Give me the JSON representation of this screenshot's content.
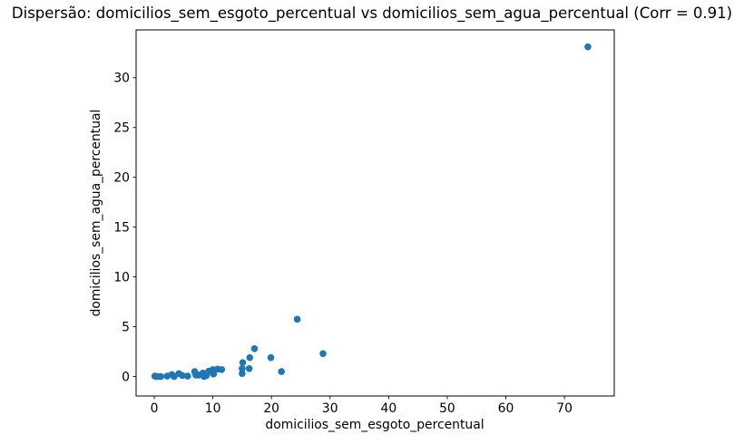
{
  "chart_data": {
    "type": "scatter",
    "title": "Dispersão: domicilios_sem_esgoto_percentual vs domicilios_sem_agua_percentual (Corr = 0.91)",
    "xlabel": "domicilios_sem_esgoto_percentual",
    "ylabel": "domicilios_sem_agua_percentual",
    "correlation": 0.91,
    "marker_color": "#1f77b4",
    "frame_color": "#000000",
    "background_color": "#ffffff",
    "grid": false,
    "legend_position": "none",
    "xlim": [
      -3.1,
      78.5
    ],
    "ylim": [
      -1.95,
      34.8
    ],
    "x_ticks": [
      0,
      10,
      20,
      30,
      40,
      50,
      60,
      70
    ],
    "y_ticks": [
      0,
      5,
      10,
      15,
      20,
      25,
      30
    ],
    "points": [
      [
        0.1,
        0.05
      ],
      [
        0.45,
        0.0
      ],
      [
        1.1,
        0.0
      ],
      [
        2.2,
        0.05
      ],
      [
        3.0,
        0.2
      ],
      [
        3.4,
        0.0
      ],
      [
        4.2,
        0.3
      ],
      [
        4.8,
        0.1
      ],
      [
        5.7,
        0.05
      ],
      [
        6.9,
        0.5
      ],
      [
        7.1,
        0.15
      ],
      [
        7.6,
        0.15
      ],
      [
        8.3,
        0.35
      ],
      [
        8.5,
        0.0
      ],
      [
        8.9,
        0.1
      ],
      [
        9.3,
        0.55
      ],
      [
        10.0,
        0.7
      ],
      [
        10.1,
        0.25
      ],
      [
        10.8,
        0.75
      ],
      [
        11.5,
        0.7
      ],
      [
        15.0,
        0.3
      ],
      [
        15.0,
        0.8
      ],
      [
        15.1,
        1.4
      ],
      [
        16.2,
        0.8
      ],
      [
        16.3,
        1.9
      ],
      [
        17.1,
        2.8
      ],
      [
        19.9,
        1.9
      ],
      [
        21.7,
        0.5
      ],
      [
        24.4,
        5.75
      ],
      [
        28.8,
        2.3
      ],
      [
        74.0,
        33.1
      ]
    ]
  }
}
